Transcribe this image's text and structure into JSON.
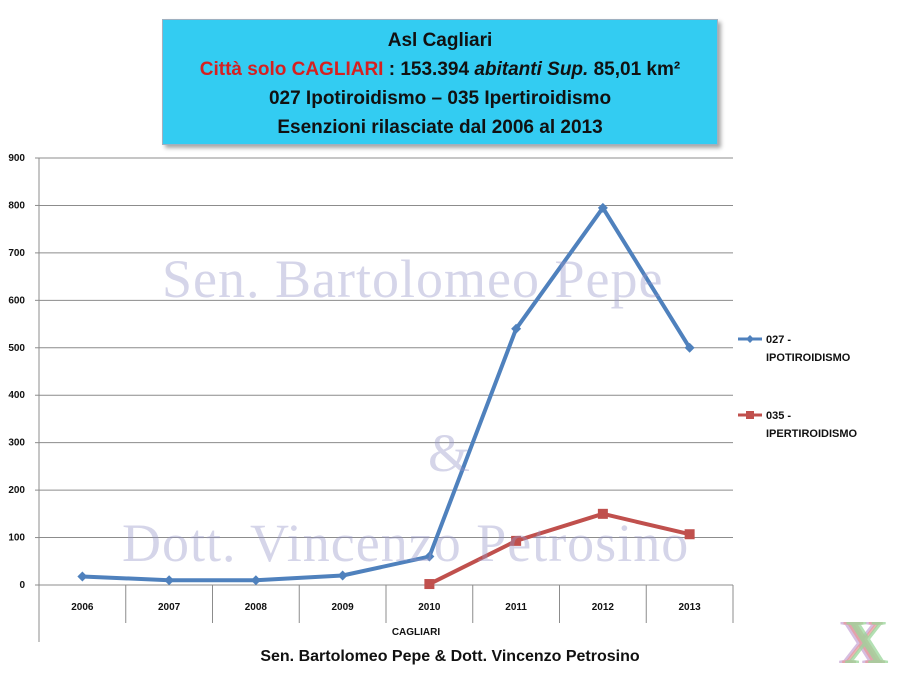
{
  "header": {
    "line1": "Asl Cagliari",
    "line2_red": "Città solo CAGLIARI",
    "line2_sep": " : ",
    "line2_value": "153.394",
    "line2_italic": "abitanti Sup.",
    "line2_area": "85,01 km²",
    "line3": "027 Ipotiroidismo – 035 Ipertiroidismo",
    "line4": "Esenzioni rilasciate dal 2006 al 2013"
  },
  "watermark": {
    "line1": "Sen. Bartolomeo Pepe",
    "line2": "&",
    "line3": "Dott. Vincenzo Petrosino"
  },
  "footer": "Sen. Bartolomeo  Pepe & Dott. Vincenzo  Petrosino",
  "logo": {
    "letter": "X",
    "colors": [
      "#c9a8d6",
      "#e89a9a",
      "#9ad69a"
    ]
  },
  "chart_data": {
    "type": "line",
    "categories": [
      "2006",
      "2007",
      "2008",
      "2009",
      "2010",
      "2011",
      "2012",
      "2013"
    ],
    "xlabel": "CAGLIARI",
    "ylabel": "",
    "ylim": [
      0,
      900
    ],
    "yticks": [
      "0",
      "100",
      "200",
      "300",
      "400",
      "500",
      "600",
      "700",
      "800",
      "900"
    ],
    "grid": true,
    "legend_position": "right",
    "series": [
      {
        "name_line1": "027 -",
        "name_line2": "IPOTIROIDISMO",
        "color": "#4f81bd",
        "marker": "diamond",
        "values": [
          18,
          10,
          10,
          20,
          60,
          540,
          795,
          500
        ]
      },
      {
        "name_line1": "035 -",
        "name_line2": "IPERTIROIDISMO",
        "color": "#c0504d",
        "marker": "square",
        "values": [
          null,
          null,
          null,
          null,
          2,
          93,
          150,
          107
        ]
      }
    ]
  }
}
